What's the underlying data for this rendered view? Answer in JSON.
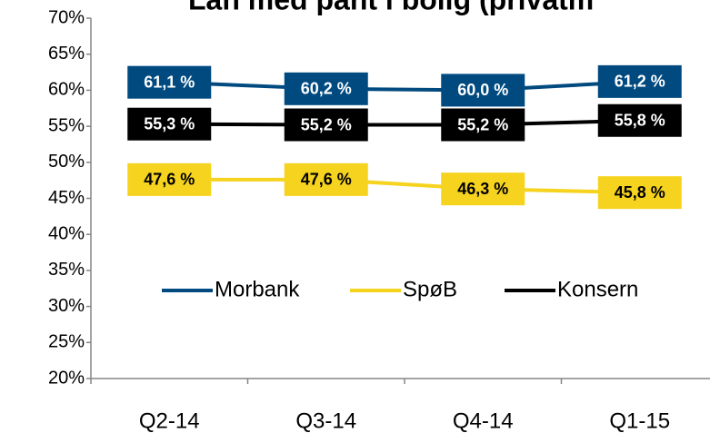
{
  "chart_data": {
    "type": "line",
    "title": "Lån med pant i bolig (privatm",
    "categories": [
      "Q2-14",
      "Q3-14",
      "Q4-14",
      "Q1-15"
    ],
    "series": [
      {
        "name": "Morbank",
        "color": "#004a80",
        "label_text_color": "#ffffff",
        "values": [
          61.1,
          60.2,
          60.0,
          61.2
        ],
        "value_labels": [
          "61,1 %",
          "60,2 %",
          "60,0 %",
          "61,2 %"
        ]
      },
      {
        "name": "SpøB",
        "color": "#f5d31e",
        "label_text_color": "#000000",
        "values": [
          47.6,
          47.6,
          46.3,
          45.8
        ],
        "value_labels": [
          "47,6 %",
          "47,6 %",
          "46,3 %",
          "45,8 %"
        ]
      },
      {
        "name": "Konsern",
        "color": "#000000",
        "label_text_color": "#ffffff",
        "values": [
          55.3,
          55.2,
          55.2,
          55.8
        ],
        "value_labels": [
          "55,3 %",
          "55,2 %",
          "55,2 %",
          "55,8 %"
        ]
      }
    ],
    "ylim": [
      20,
      70
    ],
    "yticks": [
      {
        "value": 20,
        "label": "20%"
      },
      {
        "value": 25,
        "label": "25%"
      },
      {
        "value": 30,
        "label": "30%"
      },
      {
        "value": 35,
        "label": "35%"
      },
      {
        "value": 40,
        "label": "40%"
      },
      {
        "value": 45,
        "label": "45%"
      },
      {
        "value": 50,
        "label": "50%"
      },
      {
        "value": 55,
        "label": "55%"
      },
      {
        "value": 60,
        "label": "60%"
      },
      {
        "value": 65,
        "label": "65%"
      },
      {
        "value": 70,
        "label": "70%"
      }
    ],
    "legend": "center"
  }
}
